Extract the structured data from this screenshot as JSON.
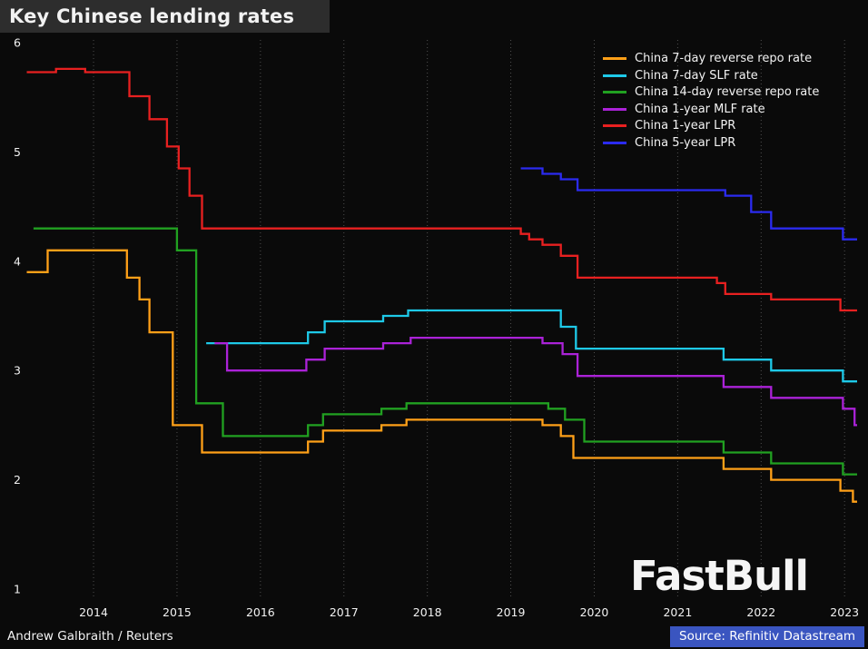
{
  "title": "Key Chinese lending rates",
  "credit": "Andrew Galbraith / Reuters",
  "source": "Source: Refinitiv Datastream",
  "watermark": "FastBull",
  "colors": {
    "background": "#0a0a0a",
    "title_bar_bg": "#2d2d2d",
    "grid": "#4f4f4f",
    "text": "#f2f2f2",
    "source_highlight": "#3a55c0"
  },
  "chart_data": {
    "type": "line",
    "step": true,
    "title": "Key Chinese lending rates",
    "xlabel": "",
    "ylabel": "",
    "x_range": [
      2013.7,
      2023.65
    ],
    "y_range": [
      1,
      6
    ],
    "y_ticks": [
      "1",
      "2",
      "3",
      "4",
      "5",
      "6"
    ],
    "x_tick_labels": [
      "2014",
      "2015",
      "2016",
      "2017",
      "2018",
      "2019",
      "2020",
      "2021",
      "2022",
      "2023"
    ],
    "grid": "vertical-dotted",
    "legend_position": "top-right",
    "series": [
      {
        "name": "China 7-day reverse repo rate",
        "color": "#ffa018",
        "points": [
          [
            2013.7,
            3.9
          ],
          [
            2013.95,
            4.1
          ],
          [
            2014.9,
            3.85
          ],
          [
            2015.05,
            3.65
          ],
          [
            2015.17,
            3.35
          ],
          [
            2015.45,
            2.5
          ],
          [
            2015.8,
            2.25
          ],
          [
            2017.07,
            2.35
          ],
          [
            2017.25,
            2.45
          ],
          [
            2017.95,
            2.5
          ],
          [
            2018.25,
            2.55
          ],
          [
            2019.88,
            2.5
          ],
          [
            2020.1,
            2.4
          ],
          [
            2020.25,
            2.2
          ],
          [
            2022.05,
            2.1
          ],
          [
            2022.62,
            2.0
          ],
          [
            2023.45,
            1.9
          ],
          [
            2023.6,
            1.8
          ]
        ]
      },
      {
        "name": "China 7-day SLF rate",
        "color": "#1ec9e8",
        "points": [
          [
            2015.85,
            3.25
          ],
          [
            2017.07,
            3.35
          ],
          [
            2017.27,
            3.45
          ],
          [
            2017.97,
            3.5
          ],
          [
            2018.27,
            3.55
          ],
          [
            2020.1,
            3.4
          ],
          [
            2020.28,
            3.2
          ],
          [
            2022.05,
            3.1
          ],
          [
            2022.62,
            3.0
          ],
          [
            2023.48,
            2.9
          ]
        ]
      },
      {
        "name": "China 14-day reverse repo rate",
        "color": "#21a121",
        "points": [
          [
            2013.78,
            4.3
          ],
          [
            2015.5,
            4.1
          ],
          [
            2015.73,
            2.7
          ],
          [
            2016.05,
            2.4
          ],
          [
            2017.07,
            2.5
          ],
          [
            2017.25,
            2.6
          ],
          [
            2017.95,
            2.65
          ],
          [
            2018.25,
            2.7
          ],
          [
            2019.95,
            2.65
          ],
          [
            2020.15,
            2.55
          ],
          [
            2020.38,
            2.35
          ],
          [
            2022.05,
            2.25
          ],
          [
            2022.62,
            2.15
          ],
          [
            2023.48,
            2.05
          ]
        ]
      },
      {
        "name": "China 1-year MLF rate",
        "color": "#ab22d8",
        "points": [
          [
            2015.95,
            3.25
          ],
          [
            2016.1,
            3.0
          ],
          [
            2017.05,
            3.1
          ],
          [
            2017.27,
            3.2
          ],
          [
            2017.97,
            3.25
          ],
          [
            2018.3,
            3.3
          ],
          [
            2019.88,
            3.25
          ],
          [
            2020.12,
            3.15
          ],
          [
            2020.3,
            2.95
          ],
          [
            2022.05,
            2.85
          ],
          [
            2022.62,
            2.75
          ],
          [
            2023.48,
            2.65
          ],
          [
            2023.62,
            2.5
          ]
        ]
      },
      {
        "name": "China 1-year LPR",
        "color": "#e82020",
        "points": [
          [
            2013.7,
            5.73
          ],
          [
            2014.05,
            5.76
          ],
          [
            2014.4,
            5.73
          ],
          [
            2014.93,
            5.51
          ],
          [
            2015.17,
            5.3
          ],
          [
            2015.38,
            5.05
          ],
          [
            2015.52,
            4.85
          ],
          [
            2015.65,
            4.6
          ],
          [
            2015.8,
            4.3
          ],
          [
            2019.62,
            4.25
          ],
          [
            2019.72,
            4.2
          ],
          [
            2019.88,
            4.15
          ],
          [
            2020.1,
            4.05
          ],
          [
            2020.3,
            3.85
          ],
          [
            2021.97,
            3.8
          ],
          [
            2022.07,
            3.7
          ],
          [
            2022.62,
            3.65
          ],
          [
            2023.45,
            3.55
          ]
        ]
      },
      {
        "name": "China 5-year LPR",
        "color": "#2b2bf0",
        "points": [
          [
            2019.62,
            4.85
          ],
          [
            2019.88,
            4.8
          ],
          [
            2020.1,
            4.75
          ],
          [
            2020.3,
            4.65
          ],
          [
            2022.07,
            4.6
          ],
          [
            2022.38,
            4.45
          ],
          [
            2022.62,
            4.3
          ],
          [
            2023.48,
            4.2
          ]
        ]
      }
    ]
  }
}
